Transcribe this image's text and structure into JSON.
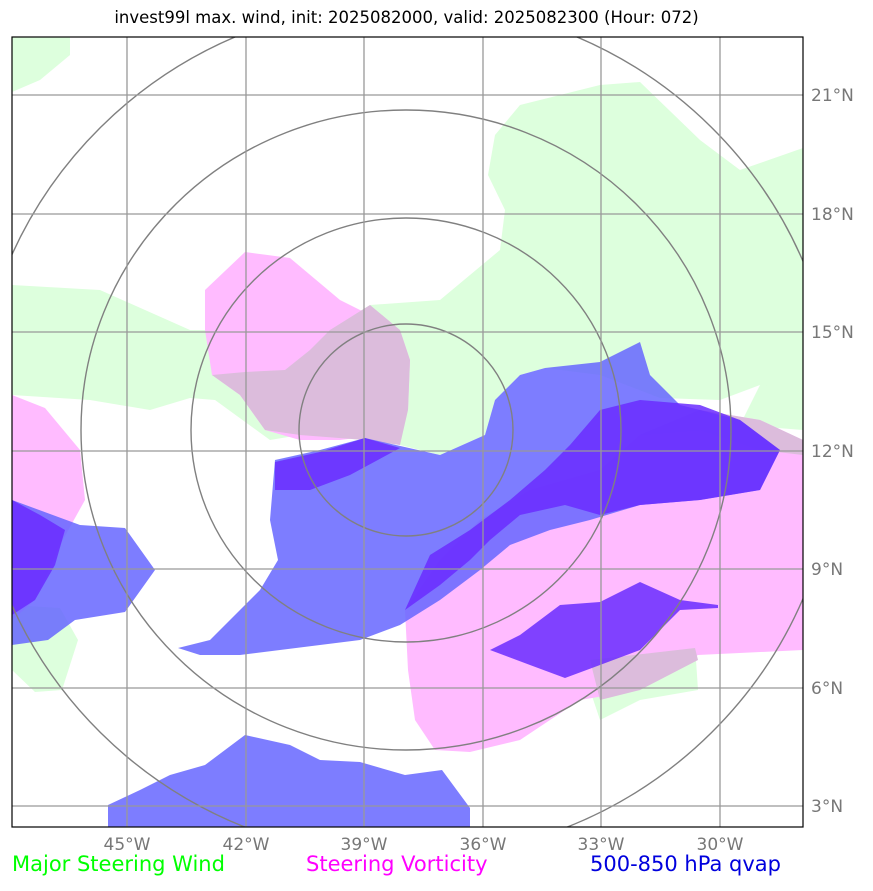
{
  "title": "invest99l max. wind, init: 2025082000, valid: 2025082300 (Hour: 072)",
  "map": {
    "lon_labels": [
      "45°W",
      "42°W",
      "39°W",
      "36°W",
      "33°W",
      "30°W"
    ],
    "lat_labels": [
      "3°N",
      "6°N",
      "9°N",
      "12°N",
      "15°N",
      "18°N",
      "21°N"
    ],
    "extent": {
      "lon_min": -47.9,
      "lon_max": -27.9,
      "lat_min": 2.5,
      "lat_max": 22.4
    },
    "grid_color": "#999999",
    "ring_color": "#808080"
  },
  "legend": [
    {
      "label": "Major Steering Wind",
      "color": "#00ff00"
    },
    {
      "label": "Steering Vorticity",
      "color": "#ff00ff"
    },
    {
      "label": "500-850 hPa qvap",
      "color": "#0000dd"
    }
  ],
  "fields": {
    "wind_color": "#ddffdd",
    "vorticity_color": "#ffbbff",
    "qvap_color": "#6666ff",
    "qvap_strong_color": "#6a2cff"
  }
}
